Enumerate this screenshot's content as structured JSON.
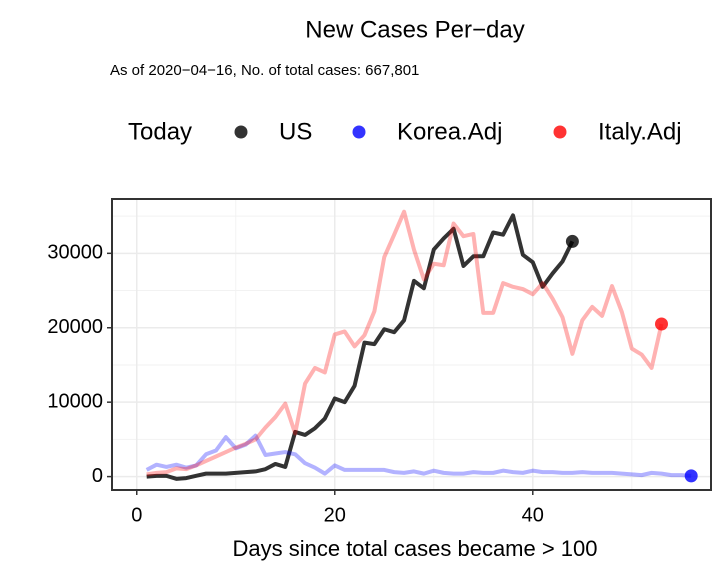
{
  "chart_data": {
    "type": "line",
    "title": "New Cases Per−day",
    "subtitle": "As of 2020−04−16, No. of total cases: 667,801",
    "xlabel": "Days since total cases became > 100",
    "legend_title": "Today",
    "xlim": [
      -2.5,
      58
    ],
    "xticks": [
      0,
      20,
      40
    ],
    "ylim": [
      -1800,
      37300
    ],
    "yticks": [
      0,
      10000,
      20000,
      30000
    ],
    "grid": true,
    "legend": "top",
    "series": [
      {
        "name": "US",
        "color": "#000000",
        "line_opacity": 0.8,
        "point_opacity": 0.8,
        "x": [
          1,
          2,
          3,
          4,
          5,
          6,
          7,
          8,
          9,
          10,
          11,
          12,
          13,
          14,
          15,
          16,
          17,
          18,
          19,
          20,
          21,
          22,
          23,
          24,
          25,
          26,
          27,
          28,
          29,
          30,
          31,
          32,
          33,
          34,
          35,
          36,
          37,
          38,
          39,
          40,
          41,
          42,
          43,
          44
        ],
        "values": [
          0,
          100,
          100,
          -300,
          -200,
          100,
          400,
          400,
          400,
          500,
          600,
          700,
          1000,
          1700,
          1300,
          6000,
          5600,
          6500,
          7800,
          10500,
          10000,
          12200,
          18000,
          17800,
          19800,
          19400,
          21000,
          26300,
          25300,
          30500,
          32000,
          33300,
          28300,
          29600,
          29600,
          32800,
          32500,
          35100,
          29800,
          28800,
          25500,
          27300,
          28900,
          31600
        ]
      },
      {
        "name": "Korea.Adj",
        "color": "#0000ff",
        "line_opacity": 0.3,
        "point_opacity": 0.8,
        "x": [
          1,
          2,
          3,
          4,
          5,
          6,
          7,
          8,
          9,
          10,
          11,
          12,
          13,
          14,
          15,
          16,
          17,
          18,
          19,
          20,
          21,
          22,
          23,
          24,
          25,
          26,
          27,
          28,
          29,
          30,
          31,
          32,
          33,
          34,
          35,
          36,
          37,
          38,
          39,
          40,
          41,
          42,
          43,
          44,
          45,
          46,
          47,
          48,
          49,
          50,
          51,
          52,
          53,
          54,
          55,
          56
        ],
        "values": [
          900,
          1600,
          1300,
          1600,
          1200,
          1500,
          3000,
          3500,
          5300,
          3800,
          4300,
          5500,
          2900,
          3100,
          3300,
          3000,
          1800,
          1200,
          400,
          1500,
          900,
          900,
          900,
          900,
          900,
          600,
          500,
          700,
          400,
          800,
          500,
          400,
          400,
          600,
          500,
          500,
          800,
          600,
          500,
          800,
          600,
          600,
          500,
          500,
          600,
          500,
          500,
          500,
          400,
          300,
          200,
          500,
          400,
          200,
          200,
          100
        ]
      },
      {
        "name": "Italy.Adj",
        "color": "#ff0000",
        "line_opacity": 0.3,
        "point_opacity": 0.8,
        "x": [
          1,
          2,
          3,
          4,
          5,
          6,
          7,
          8,
          9,
          10,
          11,
          12,
          13,
          14,
          15,
          16,
          17,
          18,
          19,
          20,
          21,
          22,
          23,
          24,
          25,
          26,
          27,
          28,
          29,
          30,
          31,
          32,
          33,
          34,
          35,
          36,
          37,
          38,
          39,
          40,
          41,
          42,
          43,
          44,
          45,
          46,
          47,
          48,
          49,
          50,
          51,
          52,
          53
        ],
        "values": [
          300,
          500,
          600,
          1100,
          1000,
          1500,
          2100,
          2700,
          3300,
          3900,
          4400,
          5000,
          6600,
          8000,
          9800,
          5800,
          12500,
          14600,
          14000,
          19100,
          19500,
          17500,
          19000,
          22200,
          29500,
          32500,
          35600,
          30500,
          26500,
          28600,
          28400,
          34000,
          32300,
          32600,
          22000,
          22000,
          26000,
          25500,
          25200,
          24500,
          26000,
          23900,
          21400,
          16500,
          21000,
          22800,
          21600,
          25600,
          22100,
          17200,
          16400,
          14600,
          20500
        ]
      }
    ]
  }
}
